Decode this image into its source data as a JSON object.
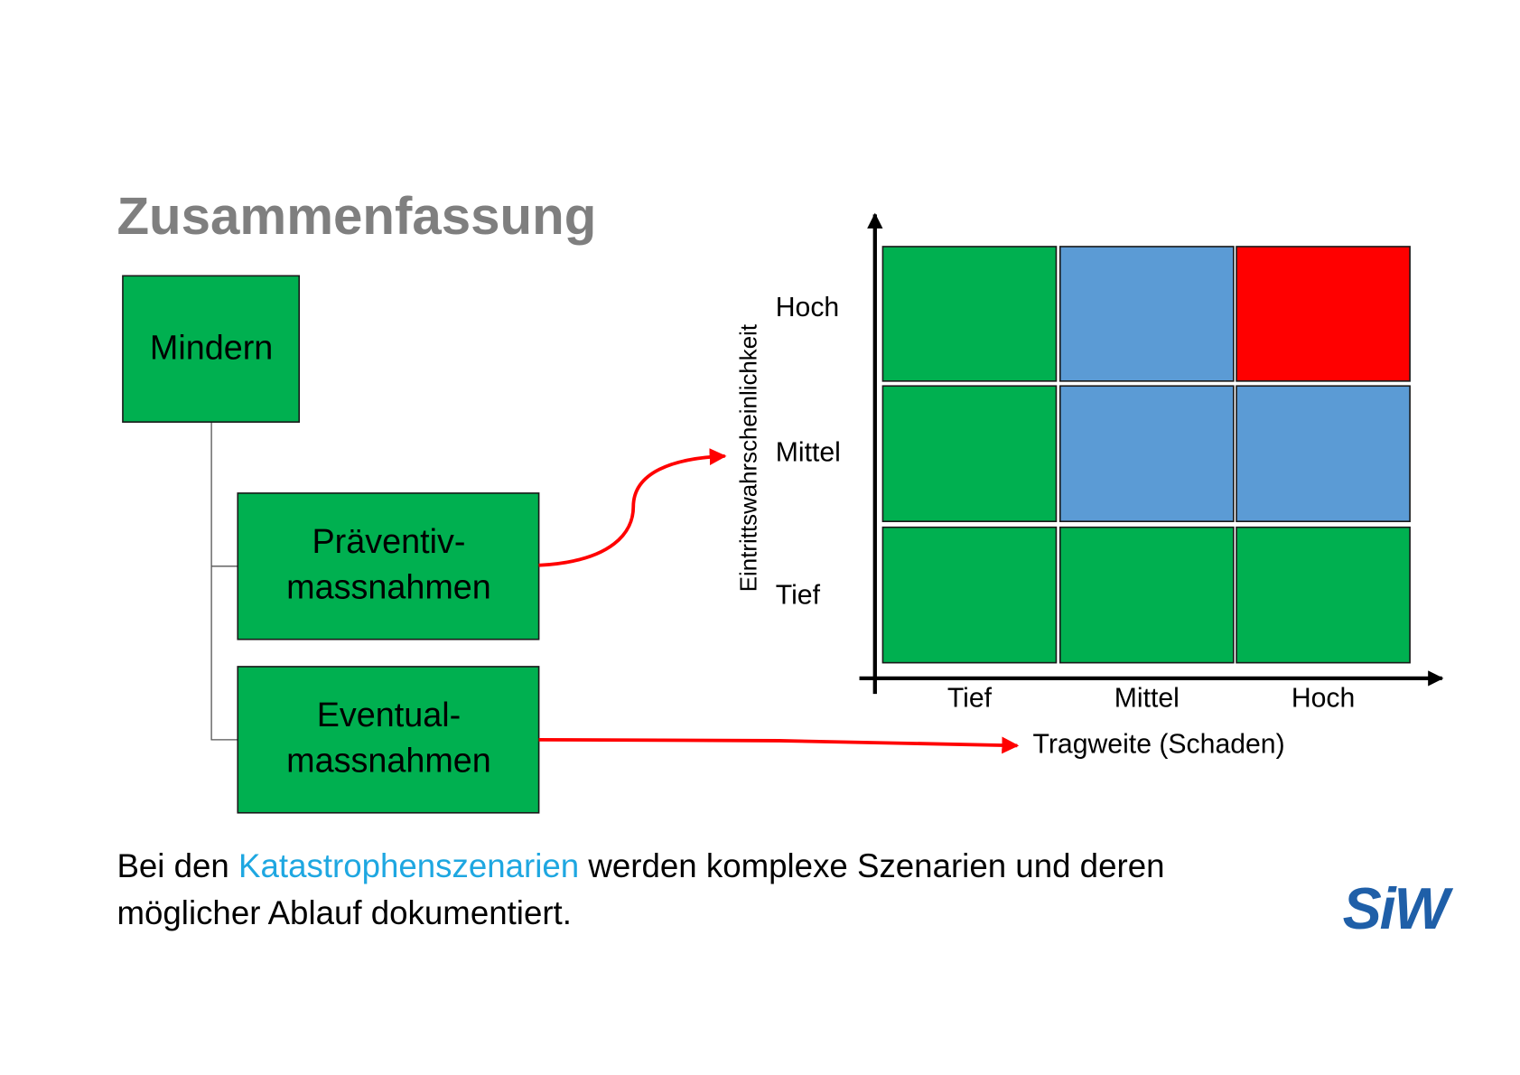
{
  "title": "Zusammenfassung",
  "tree": {
    "root": "Mindern",
    "children": [
      {
        "lines": [
          "Präventiv-",
          "massnahmen"
        ]
      },
      {
        "lines": [
          "Eventual-",
          "massnahmen"
        ]
      }
    ]
  },
  "matrix": {
    "y_label": "Eintrittswahrscheinlichkeit",
    "y_categories": [
      "Hoch",
      "Mittel",
      "Tief"
    ],
    "x_categories": [
      "Tief",
      "Mittel",
      "Hoch"
    ],
    "x_label": "Tragweite (Schaden)"
  },
  "body": {
    "lines": [
      [
        "Bei den ",
        "Katastrophenszenarien",
        " werden komplexe Szenarien und deren"
      ],
      [
        "möglicher Ablauf dokumentiert."
      ]
    ]
  },
  "logo": "SiW"
}
